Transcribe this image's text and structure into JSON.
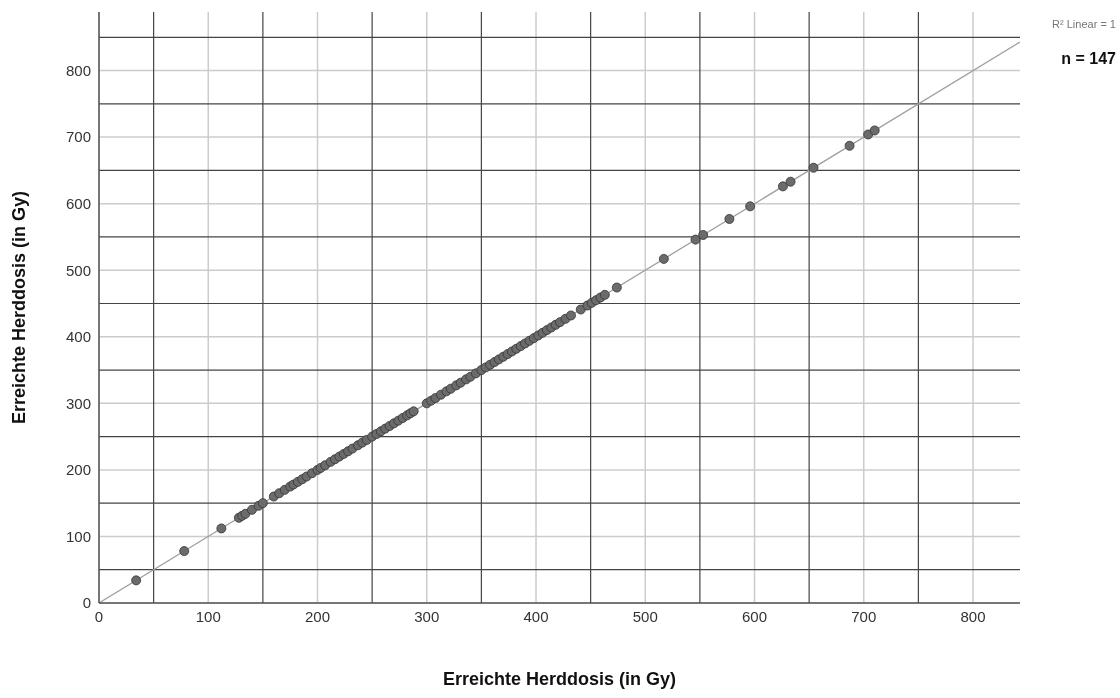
{
  "chart_data": {
    "type": "scatter",
    "xlabel": "Erreichte Herddosis (in Gy)",
    "ylabel": "Erreichte Herddosis (in Gy)",
    "annotations": [
      "R² Linear = 1",
      "n = 147"
    ],
    "xlim": [
      0,
      843
    ],
    "ylim": [
      0,
      888
    ],
    "xticks": [
      0,
      {
        "value": 50,
        "label": null
      },
      100,
      {
        "value": 150,
        "label": null
      },
      200,
      {
        "value": 250,
        "label": null
      },
      300,
      {
        "value": 350,
        "label": null
      },
      400,
      {
        "value": 450,
        "label": null
      },
      500,
      {
        "value": 550,
        "label": null
      },
      600,
      {
        "value": 650,
        "label": null
      },
      700,
      {
        "value": 750,
        "label": null
      },
      800
    ],
    "yticks": [
      0,
      {
        "value": 50,
        "label": null
      },
      100,
      {
        "value": 150,
        "label": null
      },
      200,
      {
        "value": 250,
        "label": null
      },
      300,
      {
        "value": 350,
        "label": null
      },
      400,
      {
        "value": 450,
        "label": null
      },
      500,
      {
        "value": 550,
        "label": null
      },
      600,
      {
        "value": 650,
        "label": null
      },
      700,
      {
        "value": 750,
        "label": null
      },
      800,
      {
        "value": 850,
        "label": null
      }
    ],
    "grid": true,
    "marker": "circle",
    "series": [
      {
        "color": "#6b6b6b",
        "x": [
          34,
          78,
          112,
          128,
          131,
          134,
          140,
          146,
          150,
          160,
          165,
          170,
          175,
          178,
          182,
          186,
          190,
          195,
          200,
          203,
          207,
          212,
          216,
          220,
          224,
          228,
          232,
          237,
          241,
          245,
          250,
          254,
          258,
          262,
          266,
          270,
          274,
          278,
          282,
          285,
          288,
          300,
          304,
          308,
          313,
          318,
          322,
          327,
          331,
          336,
          340,
          345,
          350,
          354,
          358,
          362,
          366,
          370,
          374,
          378,
          382,
          386,
          390,
          394,
          398,
          402,
          406,
          410,
          414,
          418,
          422,
          427,
          432,
          441,
          447,
          451,
          455,
          459,
          463,
          474,
          517,
          546,
          553,
          577,
          596,
          626,
          633,
          654,
          687,
          704,
          710
        ],
        "values": [
          34,
          78,
          112,
          128,
          131,
          134,
          140,
          146,
          150,
          160,
          165,
          170,
          175,
          178,
          182,
          186,
          190,
          195,
          200,
          203,
          207,
          212,
          216,
          220,
          224,
          228,
          232,
          237,
          241,
          245,
          250,
          254,
          258,
          262,
          266,
          270,
          274,
          278,
          282,
          285,
          288,
          300,
          304,
          308,
          313,
          318,
          322,
          327,
          331,
          336,
          340,
          345,
          350,
          354,
          358,
          362,
          366,
          370,
          374,
          378,
          382,
          386,
          390,
          394,
          398,
          402,
          406,
          410,
          414,
          418,
          422,
          427,
          432,
          441,
          447,
          451,
          455,
          459,
          463,
          474,
          517,
          546,
          553,
          577,
          596,
          626,
          633,
          654,
          687,
          704,
          710
        ]
      },
      {
        "type": "line",
        "color": "#a0a0a0",
        "x": [
          0,
          843
        ],
        "values": [
          0,
          843
        ],
        "marker": "none"
      }
    ]
  }
}
